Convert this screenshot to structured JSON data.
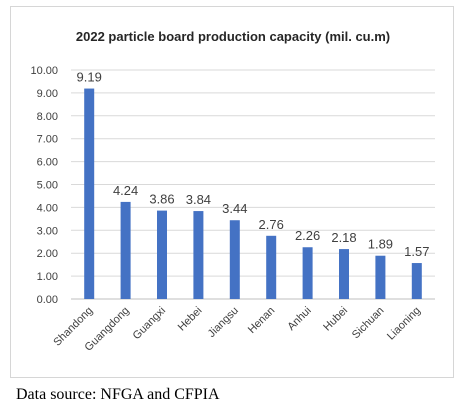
{
  "colors": {
    "bar": "#4472c4"
  },
  "source_note": "Data source: NFGA and CFPIA",
  "chart_data": {
    "type": "bar",
    "title": "2022 particle board production capacity (mil. cu.m)",
    "xlabel": "",
    "ylabel": "",
    "categories": [
      "Shandong",
      "Guangdong",
      "Guangxi",
      "Hebei",
      "Jiangsu",
      "Henan",
      "Anhui",
      "Hubei",
      "Sichuan",
      "Liaoning"
    ],
    "values": [
      9.19,
      4.24,
      3.86,
      3.84,
      3.44,
      2.76,
      2.26,
      2.18,
      1.89,
      1.57
    ],
    "value_labels": [
      "9.19",
      "4.24",
      "3.86",
      "3.84",
      "3.44",
      "2.76",
      "2.26",
      "2.18",
      "1.89",
      "1.57"
    ],
    "ylim": [
      0,
      10
    ],
    "yticks": [
      "0.00",
      "1.00",
      "2.00",
      "3.00",
      "4.00",
      "5.00",
      "6.00",
      "7.00",
      "8.00",
      "9.00",
      "10.00"
    ],
    "grid": true,
    "legend": "none"
  }
}
